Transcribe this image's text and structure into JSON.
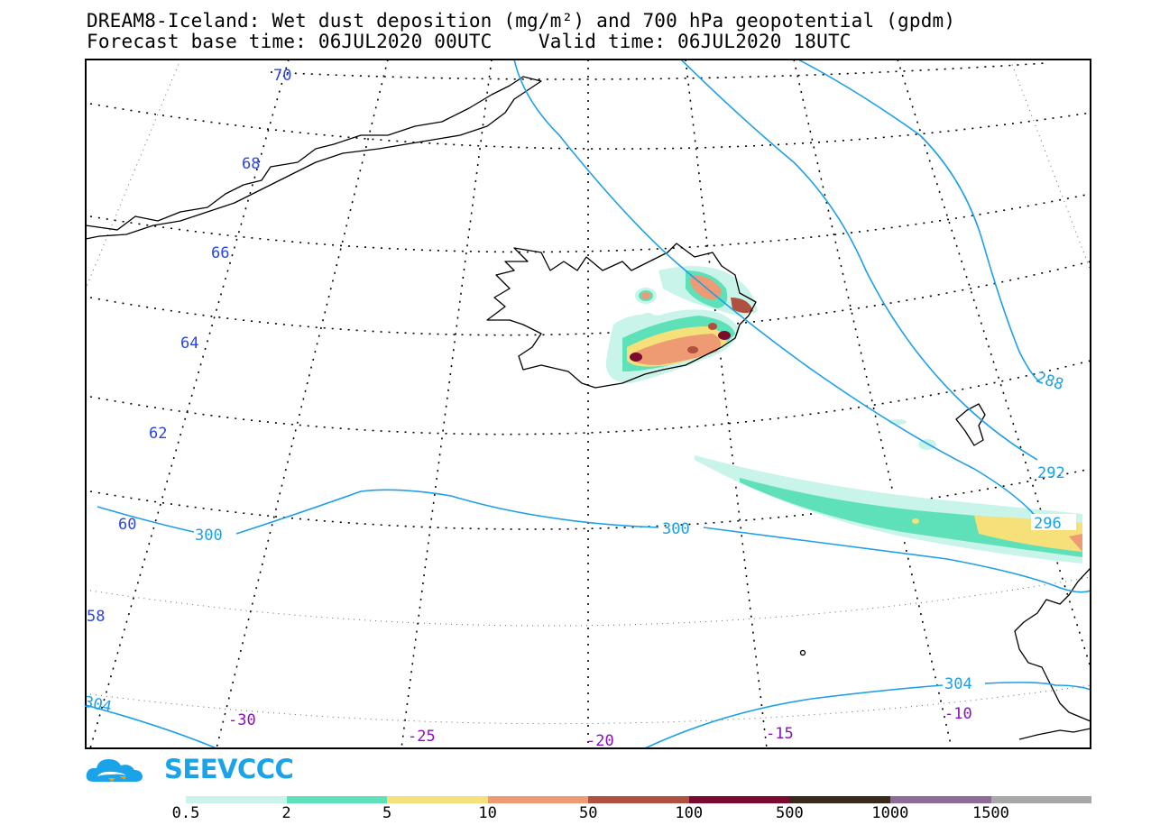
{
  "title": {
    "line1": "DREAM8-Iceland: Wet dust deposition (mg/m²) and 700 hPa geopotential (gpdm)",
    "line2": "Forecast base time: 06JUL2020 00UTC    Valid time: 06JUL2020 18UTC"
  },
  "map_labels": {
    "latitudes": [
      "70",
      "68",
      "66",
      "64",
      "62",
      "60",
      "58"
    ],
    "longitudes": [
      "-30",
      "-25",
      "-20",
      "-15",
      "-10"
    ],
    "contours": [
      "288",
      "292",
      "296",
      "300",
      "300",
      "304",
      "304"
    ]
  },
  "logo": {
    "text": "SEEVCCC"
  },
  "legend": {
    "labels": [
      "0.5",
      "2",
      "5",
      "10",
      "50",
      "100",
      "500",
      "1000",
      "1500"
    ],
    "colors": [
      "#c8f4ea",
      "#5ee0b8",
      "#f5e07a",
      "#ee9a72",
      "#b05040",
      "#7a0a30",
      "#3a2a1e",
      "#8e6c98",
      "#a8a8a8"
    ]
  },
  "colors": {
    "contour": "#1ea0e8",
    "lat_label": "#2a45e8",
    "lon_label": "#8a10c0",
    "frame": "#000000"
  }
}
